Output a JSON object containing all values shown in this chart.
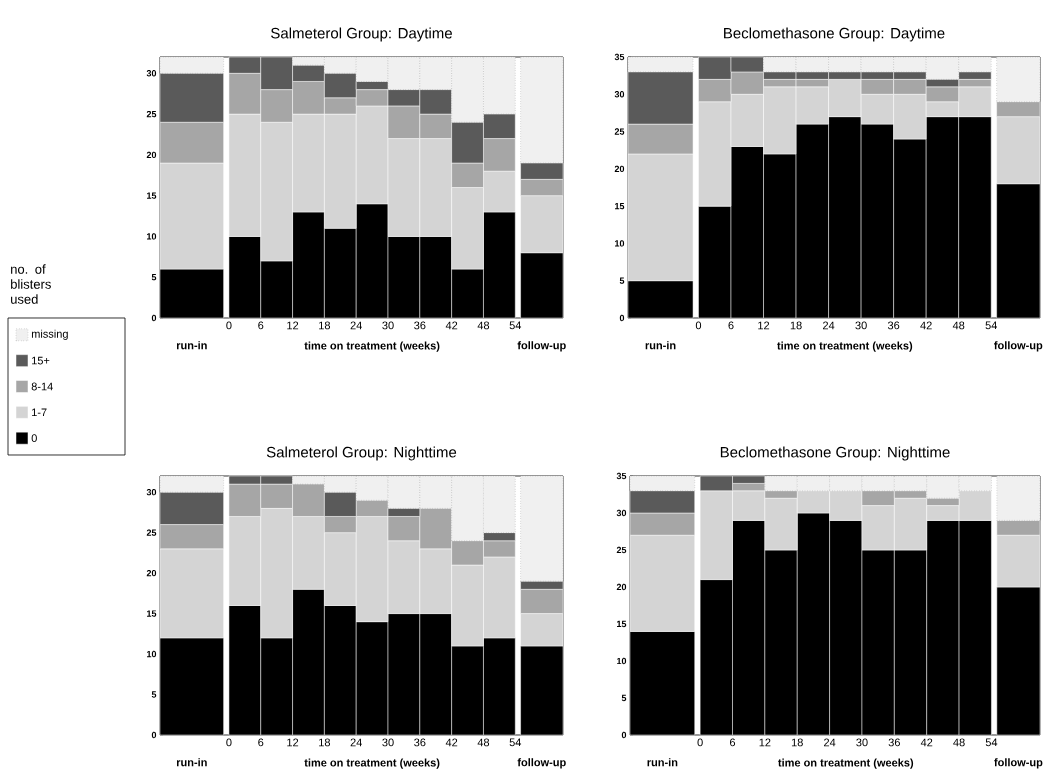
{
  "chart_data": [
    {
      "type": "bar",
      "title": "Salmeterol Group: Daytime",
      "xlabel": "time on treatment (weeks)",
      "stacked": true,
      "legend": "left",
      "legend_title": "no. of blisters used",
      "annotations": [
        "run-in",
        "follow-up"
      ],
      "x": [
        -7,
        3,
        9,
        15,
        21,
        27,
        33,
        39,
        45,
        51,
        59
      ],
      "xlim": [
        -13,
        63
      ],
      "xticks": [
        0,
        6,
        12,
        18,
        24,
        30,
        36,
        42,
        48,
        54
      ],
      "ylim": [
        0,
        32
      ],
      "yticks": [
        0,
        5,
        10,
        15,
        20,
        25,
        30
      ],
      "series": [
        {
          "name": "0",
          "color": "#000000",
          "values": [
            6,
            10,
            7,
            13,
            11,
            14,
            10,
            10,
            6,
            13,
            8
          ]
        },
        {
          "name": "1-7",
          "color": "#d4d4d4",
          "values": [
            13,
            15,
            17,
            12,
            14,
            12,
            12,
            12,
            10,
            5,
            7
          ]
        },
        {
          "name": "8-14",
          "color": "#a6a6a6",
          "values": [
            5,
            5,
            4,
            4,
            2,
            2,
            4,
            3,
            3,
            4,
            2
          ]
        },
        {
          "name": "15+",
          "color": "#5a5a5a",
          "values": [
            6,
            2,
            4,
            2,
            3,
            1,
            2,
            3,
            5,
            3,
            2
          ]
        },
        {
          "name": "missing",
          "color": "#f0f0f0",
          "line_style": "dotted",
          "values": [
            2,
            0,
            0,
            1,
            2,
            3,
            4,
            4,
            8,
            7,
            13
          ]
        }
      ]
    },
    {
      "type": "bar",
      "title": "Beclomethasone Group: Daytime",
      "xlabel": "time on treatment (weeks)",
      "stacked": true,
      "annotations": [
        "run-in",
        "follow-up"
      ],
      "x": [
        -7,
        3,
        9,
        15,
        21,
        27,
        33,
        39,
        45,
        51,
        59
      ],
      "xlim": [
        -13,
        63
      ],
      "xticks": [
        0,
        6,
        12,
        18,
        24,
        30,
        36,
        42,
        48,
        54
      ],
      "ylim": [
        0,
        35
      ],
      "yticks": [
        0,
        5,
        10,
        15,
        20,
        25,
        30,
        35
      ],
      "series": [
        {
          "color": "#000000",
          "values": [
            5,
            15,
            23,
            22,
            26,
            27,
            26,
            24,
            27,
            27,
            18
          ]
        },
        {
          "color": "#d4d4d4",
          "values": [
            17,
            14,
            7,
            9,
            5,
            5,
            4,
            6,
            2,
            4,
            9
          ]
        },
        {
          "color": "#a6a6a6",
          "values": [
            4,
            3,
            3,
            1,
            1,
            0,
            2,
            2,
            2,
            1,
            2
          ]
        },
        {
          "color": "#5a5a5a",
          "values": [
            7,
            3,
            2,
            1,
            1,
            1,
            1,
            1,
            1,
            1,
            0
          ]
        },
        {
          "color": "#f0f0f0",
          "line_style": "dotted",
          "values": [
            2,
            0,
            0,
            2,
            2,
            2,
            2,
            2,
            3,
            2,
            6
          ]
        }
      ]
    },
    {
      "type": "bar",
      "title": "Salmeterol Group: Nighttime",
      "xlabel": "time on treatment (weeks)",
      "stacked": true,
      "annotations": [
        "run-in",
        "follow-up"
      ],
      "x": [
        -7,
        3,
        9,
        15,
        21,
        27,
        33,
        39,
        45,
        51,
        59
      ],
      "xlim": [
        -13,
        63
      ],
      "xticks": [
        0,
        6,
        12,
        18,
        24,
        30,
        36,
        42,
        48,
        54
      ],
      "ylim": [
        0,
        32
      ],
      "yticks": [
        0,
        5,
        10,
        15,
        20,
        25,
        30
      ],
      "series": [
        {
          "color": "#000000",
          "values": [
            12,
            16,
            12,
            18,
            16,
            14,
            15,
            15,
            11,
            12,
            11
          ]
        },
        {
          "color": "#d4d4d4",
          "values": [
            11,
            11,
            16,
            9,
            9,
            13,
            9,
            8,
            10,
            10,
            4
          ]
        },
        {
          "color": "#a6a6a6",
          "values": [
            3,
            4,
            3,
            4,
            2,
            2,
            3,
            5,
            3,
            2,
            3
          ]
        },
        {
          "color": "#5a5a5a",
          "values": [
            4,
            1,
            1,
            0,
            3,
            0,
            1,
            0,
            0,
            1,
            1
          ]
        },
        {
          "color": "#f0f0f0",
          "line_style": "dotted",
          "values": [
            2,
            0,
            0,
            1,
            2,
            3,
            4,
            4,
            8,
            7,
            13
          ]
        }
      ]
    },
    {
      "type": "bar",
      "title": "Beclomethasone Group: Nighttime",
      "xlabel": "time on treatment (weeks)",
      "stacked": true,
      "annotations": [
        "run-in",
        "follow-up"
      ],
      "x": [
        -7,
        3,
        9,
        15,
        21,
        27,
        33,
        39,
        45,
        51,
        59
      ],
      "xlim": [
        -13,
        63
      ],
      "xticks": [
        0,
        6,
        12,
        18,
        24,
        30,
        36,
        42,
        48,
        54
      ],
      "ylim": [
        0,
        35
      ],
      "yticks": [
        0,
        5,
        10,
        15,
        20,
        25,
        30,
        35
      ],
      "series": [
        {
          "color": "#000000",
          "values": [
            14,
            21,
            29,
            25,
            30,
            29,
            25,
            25,
            29,
            29,
            20
          ]
        },
        {
          "color": "#d4d4d4",
          "values": [
            13,
            12,
            4,
            7,
            3,
            4,
            6,
            7,
            2,
            4,
            7
          ]
        },
        {
          "color": "#a6a6a6",
          "values": [
            3,
            0,
            1,
            1,
            0,
            0,
            2,
            1,
            1,
            0,
            2
          ]
        },
        {
          "color": "#5a5a5a",
          "values": [
            3,
            2,
            1,
            0,
            0,
            0,
            0,
            0,
            0,
            0,
            0
          ]
        },
        {
          "color": "#f0f0f0",
          "line_style": "dotted",
          "values": [
            2,
            0,
            0,
            2,
            2,
            2,
            2,
            2,
            3,
            2,
            6
          ]
        }
      ]
    }
  ]
}
